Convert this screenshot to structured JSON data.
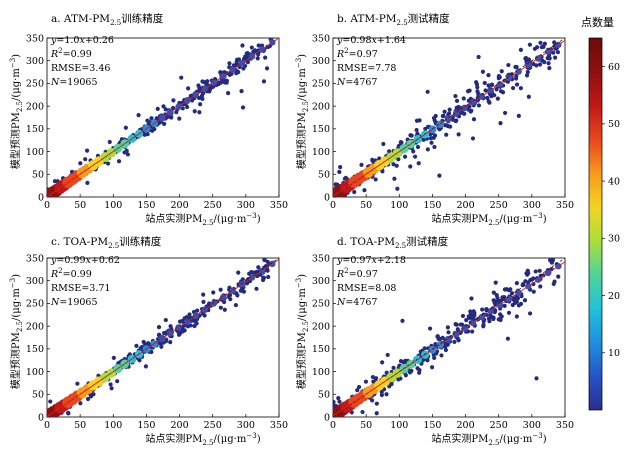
{
  "chart_data": [
    {
      "type": "scatter",
      "title_prefix": "a. ATM-PM",
      "title_sub": "2.5",
      "title_suffix": "训练精度",
      "xlabel": "站点实测PM2.5/(μg·m−3)",
      "ylabel": "模型预测PM2.5/(μg·m−3)",
      "xlim": [
        0,
        350
      ],
      "ylim": [
        0,
        350
      ],
      "xticks": [
        0,
        50,
        100,
        150,
        200,
        250,
        300,
        350
      ],
      "yticks": [
        0,
        50,
        100,
        150,
        200,
        250,
        300,
        350
      ],
      "equation": "y=1.0x+0.26",
      "r2": "R2=0.99",
      "rmse": "RMSE=3.46",
      "n": "N=19065",
      "slope": 1.0,
      "intercept": 0.26,
      "spread": 9,
      "outlier_spread": 40,
      "n_points": 700,
      "seed": 11
    },
    {
      "type": "scatter",
      "title_prefix": "b. ATM-PM",
      "title_sub": "2.5",
      "title_suffix": "测试精度",
      "xlabel": "站点实测PM2.5/(μg·m−3)",
      "ylabel": "模型预测PM2.5/(μg·m−3)",
      "xlim": [
        0,
        350
      ],
      "ylim": [
        0,
        350
      ],
      "xticks": [
        0,
        50,
        100,
        150,
        200,
        250,
        300,
        350
      ],
      "yticks": [
        0,
        50,
        100,
        150,
        200,
        250,
        300,
        350
      ],
      "equation": "y=0.98x+1.64",
      "r2": "R2=0.97",
      "rmse": "RMSE=7.78",
      "n": "N=4767",
      "slope": 0.98,
      "intercept": 1.64,
      "spread": 16,
      "outlier_spread": 60,
      "n_points": 600,
      "seed": 23
    },
    {
      "type": "scatter",
      "title_prefix": "c. TOA-PM",
      "title_sub": "2.5",
      "title_suffix": "训练精度",
      "xlabel": "站点实测PM2.5/(μg·m−3)",
      "ylabel": "模型预测PM2.5/(μg·m−3)",
      "xlim": [
        0,
        350
      ],
      "ylim": [
        0,
        350
      ],
      "xticks": [
        0,
        50,
        100,
        150,
        200,
        250,
        300,
        350
      ],
      "yticks": [
        0,
        50,
        100,
        150,
        200,
        250,
        300,
        350
      ],
      "equation": "y=0.99x+0.62",
      "r2": "R2=0.99",
      "rmse": "RMSE=3.71",
      "n": "N=19065",
      "slope": 0.99,
      "intercept": 0.62,
      "spread": 9,
      "outlier_spread": 40,
      "n_points": 700,
      "seed": 37
    },
    {
      "type": "scatter",
      "title_prefix": "d. TOA-PM",
      "title_sub": "2.5",
      "title_suffix": "测试精度",
      "xlabel": "站点实测PM2.5/(μg·m−3)",
      "ylabel": "模型预测PM2.5/(μg·m−3)",
      "xlim": [
        0,
        350
      ],
      "ylim": [
        0,
        350
      ],
      "xticks": [
        0,
        50,
        100,
        150,
        200,
        250,
        300,
        350
      ],
      "yticks": [
        0,
        50,
        100,
        150,
        200,
        250,
        300,
        350
      ],
      "equation": "y=0.97x+2.18",
      "r2": "R2=0.97",
      "rmse": "RMSE=8.08",
      "n": "N=4767",
      "slope": 0.97,
      "intercept": 2.18,
      "spread": 16,
      "outlier_spread": 60,
      "n_points": 600,
      "seed": 53
    }
  ],
  "colorbar": {
    "title": "点数量",
    "ticks": [
      10,
      20,
      30,
      40,
      50,
      60
    ],
    "range": [
      0,
      65
    ],
    "colors": [
      "#2b2d8f",
      "#2455c8",
      "#1f8fe0",
      "#22c3d8",
      "#4fd49a",
      "#a9df3a",
      "#f5d320",
      "#f79a1e",
      "#e8461e",
      "#c01818",
      "#8e1010",
      "#6b0b0b"
    ]
  },
  "style": {
    "point_color": "#262a7e",
    "fit_line_color": "#e02020",
    "identity_line_color": "#222222"
  }
}
